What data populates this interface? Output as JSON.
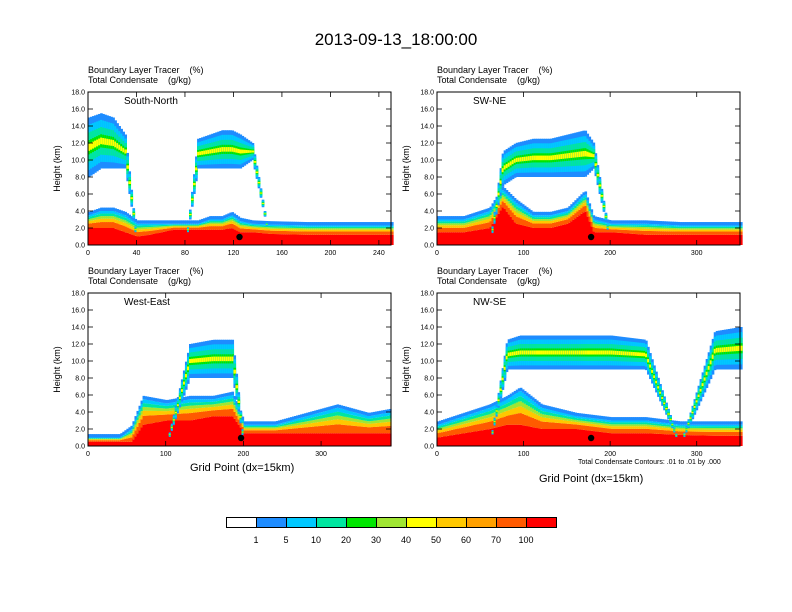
{
  "title": "2013-09-13_18:00:00",
  "panel_header": {
    "line1": "Boundary Layer Tracer    (%)",
    "line2": "Total Condensate    (g/kg)"
  },
  "x_axis_label": "Grid Point (dx=15km)",
  "contour_note": "Total Condensate Contours: .01 to .01 by .000",
  "colorbar": {
    "levels": [
      "1",
      "5",
      "10",
      "20",
      "30",
      "40",
      "50",
      "60",
      "70",
      "100"
    ],
    "colors": [
      "#ffffff",
      "#1e8cff",
      "#00c8ff",
      "#00e6a0",
      "#00e600",
      "#a0e632",
      "#ffff00",
      "#ffc800",
      "#ffa000",
      "#ff5a00",
      "#ff0000"
    ]
  },
  "chart_data": [
    {
      "type": "heatmap",
      "title": "South-North",
      "ylabel": "Height (km)",
      "xlabel": "",
      "xlim": [
        0,
        250
      ],
      "ylim": [
        0,
        18
      ],
      "xticks": [
        0,
        40,
        80,
        120,
        160,
        200,
        240
      ],
      "yticks": [
        "0.0",
        "2.0",
        "4.0",
        "6.0",
        "8.0",
        "10.0",
        "12.0",
        "14.0",
        "16.0",
        "18.0"
      ],
      "marker_x": 125,
      "profile": {
        "x": [
          0,
          10,
          20,
          30,
          40,
          50,
          60,
          70,
          80,
          90,
          100,
          110,
          118,
          125,
          135,
          150,
          180,
          210,
          240,
          250
        ],
        "pbl_top": [
          3.5,
          4.0,
          4.0,
          3.5,
          2.5,
          2.5,
          2.5,
          2.5,
          2.5,
          2.5,
          3.0,
          3.0,
          3.5,
          2.8,
          2.5,
          2.4,
          2.3,
          2.3,
          2.3,
          2.3
        ],
        "red_top": [
          2.0,
          2.0,
          2.0,
          1.5,
          1.0,
          1.2,
          1.5,
          1.8,
          1.8,
          1.8,
          1.8,
          1.8,
          2.0,
          1.5,
          1.5,
          1.3,
          1.2,
          1.2,
          1.2,
          1.2
        ],
        "anvil_bottom": [
          8.0,
          9.0,
          9.0,
          9.0,
          0,
          0,
          0,
          0,
          0,
          9.0,
          9.0,
          9.0,
          9.0,
          9.0,
          10.0,
          0,
          0,
          0,
          0,
          0
        ],
        "anvil_top": [
          15.0,
          15.5,
          15.0,
          13.0,
          0,
          0,
          0,
          0,
          0,
          12.5,
          13.0,
          13.5,
          13.5,
          13.0,
          12.0,
          0,
          0,
          0,
          0,
          0
        ]
      }
    },
    {
      "type": "heatmap",
      "title": "SW-NE",
      "ylabel": "Height (km)",
      "xlabel": "",
      "xlim": [
        0,
        350
      ],
      "ylim": [
        0,
        18
      ],
      "xticks": [
        0,
        100,
        200,
        300
      ],
      "yticks": [
        "0.0",
        "2.0",
        "4.0",
        "6.0",
        "8.0",
        "10.0",
        "12.0",
        "14.0",
        "16.0",
        "18.0"
      ],
      "marker_x": 178,
      "profile": {
        "x": [
          0,
          30,
          60,
          75,
          90,
          110,
          130,
          150,
          170,
          180,
          200,
          240,
          280,
          320,
          350
        ],
        "pbl_top": [
          3.0,
          3.0,
          4.0,
          6.5,
          5.0,
          3.5,
          3.5,
          4.0,
          6.0,
          3.0,
          2.5,
          2.5,
          2.3,
          2.3,
          2.3
        ],
        "red_top": [
          1.5,
          1.5,
          2.0,
          4.5,
          2.5,
          2.0,
          2.0,
          2.5,
          4.0,
          1.5,
          1.5,
          1.2,
          1.2,
          1.2,
          1.2
        ],
        "anvil_bottom": [
          0,
          0,
          0,
          7.0,
          8.0,
          8.0,
          8.0,
          8.0,
          8.0,
          9.0,
          0,
          0,
          0,
          0,
          0
        ],
        "anvil_top": [
          0,
          0,
          0,
          11.0,
          12.0,
          12.5,
          12.5,
          13.0,
          13.5,
          12.0,
          0,
          0,
          0,
          0,
          0
        ]
      }
    },
    {
      "type": "heatmap",
      "title": "West-East",
      "ylabel": "Height (km)",
      "xlabel": "Grid Point (dx=15km)",
      "xlim": [
        0,
        390
      ],
      "ylim": [
        0,
        18
      ],
      "xticks": [
        0,
        100,
        200,
        300
      ],
      "yticks": [
        "0.0",
        "2.0",
        "4.0",
        "6.0",
        "8.0",
        "10.0",
        "12.0",
        "14.0",
        "16.0",
        "18.0"
      ],
      "marker_x": 197,
      "profile": {
        "x": [
          0,
          40,
          55,
          70,
          100,
          130,
          160,
          185,
          200,
          240,
          280,
          320,
          360,
          390
        ],
        "pbl_top": [
          1.0,
          1.0,
          2.0,
          5.5,
          5.0,
          5.5,
          5.5,
          6.0,
          2.5,
          2.5,
          3.5,
          4.5,
          3.5,
          4.0
        ],
        "red_top": [
          0.5,
          0.5,
          0.5,
          2.5,
          3.0,
          3.0,
          3.5,
          3.5,
          1.5,
          1.5,
          1.5,
          1.5,
          1.5,
          1.5
        ],
        "anvil_bottom": [
          0,
          0,
          0,
          0,
          0,
          8.0,
          8.0,
          8.0,
          0,
          0,
          0,
          0,
          0,
          0
        ],
        "anvil_top": [
          0,
          0,
          0,
          0,
          0,
          12.0,
          12.5,
          12.5,
          0,
          0,
          0,
          0,
          0,
          0
        ]
      }
    },
    {
      "type": "heatmap",
      "title": "NW-SE",
      "ylabel": "Height (km)",
      "xlabel": "Grid Point (dx=15km)",
      "xlim": [
        0,
        350
      ],
      "ylim": [
        0,
        18
      ],
      "xticks": [
        0,
        100,
        200,
        300
      ],
      "yticks": [
        "0.0",
        "2.0",
        "4.0",
        "6.0",
        "8.0",
        "10.0",
        "12.0",
        "14.0",
        "16.0",
        "18.0"
      ],
      "marker_x": 178,
      "profile": {
        "x": [
          0,
          30,
          60,
          80,
          95,
          120,
          160,
          200,
          240,
          280,
          320,
          350
        ],
        "pbl_top": [
          2.5,
          3.5,
          4.5,
          5.5,
          6.5,
          4.5,
          3.5,
          3.0,
          3.0,
          2.5,
          2.5,
          2.5
        ],
        "red_top": [
          1.0,
          1.5,
          2.0,
          2.5,
          2.5,
          2.0,
          2.0,
          1.5,
          1.5,
          1.3,
          1.2,
          1.2
        ],
        "anvil_bottom": [
          0,
          0,
          0,
          9.0,
          9.0,
          9.0,
          9.0,
          9.0,
          9.0,
          0,
          9.0,
          9.0
        ],
        "anvil_top": [
          0,
          0,
          0,
          12.5,
          13.0,
          13.0,
          13.0,
          13.0,
          12.5,
          0,
          13.5,
          14.0
        ]
      }
    }
  ]
}
